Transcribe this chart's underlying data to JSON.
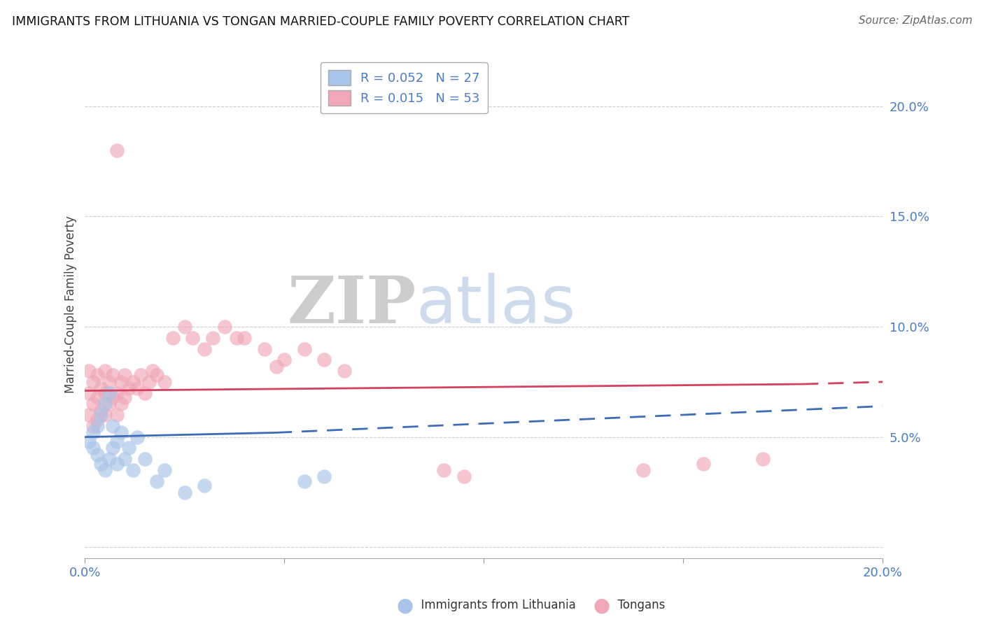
{
  "title": "IMMIGRANTS FROM LITHUANIA VS TONGAN MARRIED-COUPLE FAMILY POVERTY CORRELATION CHART",
  "source": "Source: ZipAtlas.com",
  "ylabel": "Married-Couple Family Poverty",
  "yticks": [
    0.0,
    0.05,
    0.1,
    0.15,
    0.2
  ],
  "ytick_labels": [
    "",
    "5.0%",
    "10.0%",
    "15.0%",
    "20.0%"
  ],
  "xlim": [
    0.0,
    0.2
  ],
  "ylim": [
    -0.005,
    0.225
  ],
  "legend_r1": "R = 0.052",
  "legend_n1": "N = 27",
  "legend_r2": "R = 0.015",
  "legend_n2": "N = 53",
  "label1": "Immigrants from Lithuania",
  "label2": "Tongans",
  "color1": "#a8c4e8",
  "color2": "#f0a8b8",
  "trend_color1": "#3d6db5",
  "trend_color2": "#d44060",
  "watermark_zip": "ZIP",
  "watermark_atlas": "atlas",
  "blue_scatter_x": [
    0.001,
    0.002,
    0.002,
    0.003,
    0.003,
    0.004,
    0.004,
    0.005,
    0.005,
    0.006,
    0.006,
    0.007,
    0.007,
    0.008,
    0.008,
    0.009,
    0.01,
    0.011,
    0.012,
    0.013,
    0.015,
    0.018,
    0.02,
    0.025,
    0.03,
    0.055,
    0.06
  ],
  "blue_scatter_y": [
    0.048,
    0.045,
    0.052,
    0.042,
    0.055,
    0.038,
    0.06,
    0.035,
    0.065,
    0.04,
    0.07,
    0.045,
    0.055,
    0.038,
    0.048,
    0.052,
    0.04,
    0.045,
    0.035,
    0.05,
    0.04,
    0.03,
    0.035,
    0.025,
    0.028,
    0.03,
    0.032
  ],
  "pink_scatter_x": [
    0.001,
    0.001,
    0.001,
    0.002,
    0.002,
    0.002,
    0.003,
    0.003,
    0.003,
    0.004,
    0.004,
    0.005,
    0.005,
    0.005,
    0.006,
    0.006,
    0.007,
    0.007,
    0.008,
    0.008,
    0.009,
    0.009,
    0.01,
    0.01,
    0.011,
    0.012,
    0.013,
    0.014,
    0.015,
    0.016,
    0.017,
    0.018,
    0.02,
    0.022,
    0.025,
    0.027,
    0.03,
    0.032,
    0.035,
    0.038,
    0.04,
    0.045,
    0.048,
    0.05,
    0.055,
    0.06,
    0.065,
    0.09,
    0.095,
    0.14,
    0.155,
    0.17,
    0.008
  ],
  "pink_scatter_y": [
    0.06,
    0.07,
    0.08,
    0.055,
    0.065,
    0.075,
    0.058,
    0.068,
    0.078,
    0.062,
    0.072,
    0.06,
    0.07,
    0.08,
    0.065,
    0.075,
    0.068,
    0.078,
    0.06,
    0.07,
    0.065,
    0.075,
    0.068,
    0.078,
    0.072,
    0.075,
    0.072,
    0.078,
    0.07,
    0.075,
    0.08,
    0.078,
    0.075,
    0.095,
    0.1,
    0.095,
    0.09,
    0.095,
    0.1,
    0.095,
    0.095,
    0.09,
    0.082,
    0.085,
    0.09,
    0.085,
    0.08,
    0.035,
    0.032,
    0.035,
    0.038,
    0.04,
    0.18
  ],
  "blue_trend_x0": 0.0,
  "blue_trend_x_split": 0.048,
  "blue_trend_x1": 0.2,
  "blue_trend_y0": 0.05,
  "blue_trend_y_split": 0.052,
  "blue_trend_y1": 0.064,
  "pink_trend_x0": 0.0,
  "pink_trend_x_split": 0.18,
  "pink_trend_x1": 0.2,
  "pink_trend_y0": 0.071,
  "pink_trend_y_split": 0.074,
  "pink_trend_y1": 0.075
}
